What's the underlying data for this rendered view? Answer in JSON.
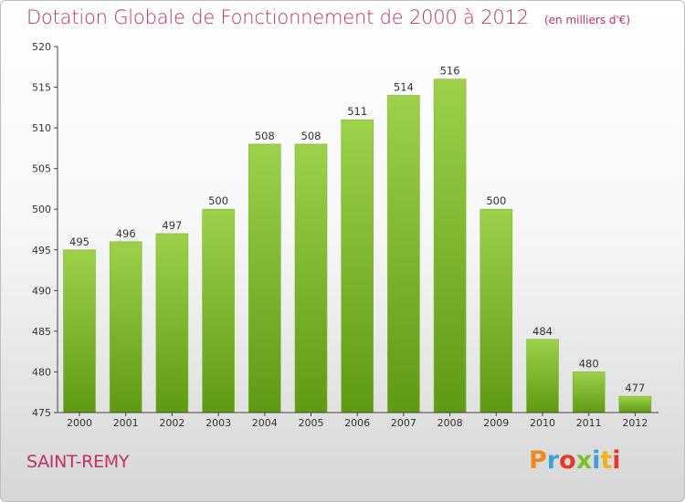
{
  "chart_data": {
    "type": "bar",
    "title": "Dotation Globale de Fonctionnement de 2000 à 2012",
    "unit_note": "(en milliers d'€)",
    "categories": [
      "2000",
      "2001",
      "2002",
      "2003",
      "2004",
      "2005",
      "2006",
      "2007",
      "2008",
      "2009",
      "2010",
      "2011",
      "2012"
    ],
    "values": [
      495,
      496,
      497,
      500,
      508,
      508,
      511,
      514,
      516,
      500,
      484,
      480,
      477
    ],
    "ylim": [
      475,
      520
    ],
    "yticks": [
      475,
      480,
      485,
      490,
      495,
      500,
      505,
      510,
      515,
      520
    ],
    "grid": false,
    "legend": "none",
    "bar_color_top": "#9dd14a",
    "bar_color_bottom": "#5e9a12"
  },
  "footer": {
    "commune": "SAINT-REMY",
    "logo_text": "Proxiti",
    "logo_colors": [
      "#f08a1c",
      "#3fa0d8",
      "#e23b2e",
      "#7bbf2a",
      "#3fa0d8",
      "#f0b21c",
      "#e23b2e"
    ]
  },
  "colors": {
    "title": "#c0306a",
    "axis": "#444444"
  }
}
